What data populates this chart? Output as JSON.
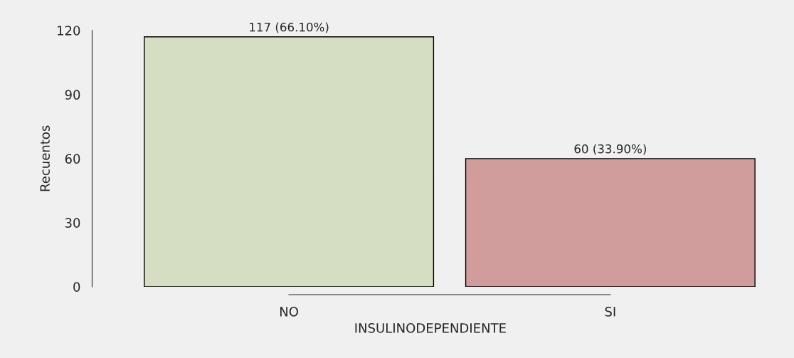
{
  "chart_data": {
    "type": "bar",
    "xlabel": "INSULINODEPENDIENTE",
    "ylabel": "Recuentos",
    "categories": [
      "NO",
      "SI"
    ],
    "values": [
      117,
      60
    ],
    "colors": [
      "#d6e2bf",
      "#d89494"
    ],
    "value_labels": [
      "117 (66.10%)",
      "60 (33.90%)"
    ],
    "ylim": [
      0,
      120
    ],
    "yticks": [
      0,
      30,
      60,
      90,
      120
    ],
    "grid": false,
    "legend": false
  }
}
